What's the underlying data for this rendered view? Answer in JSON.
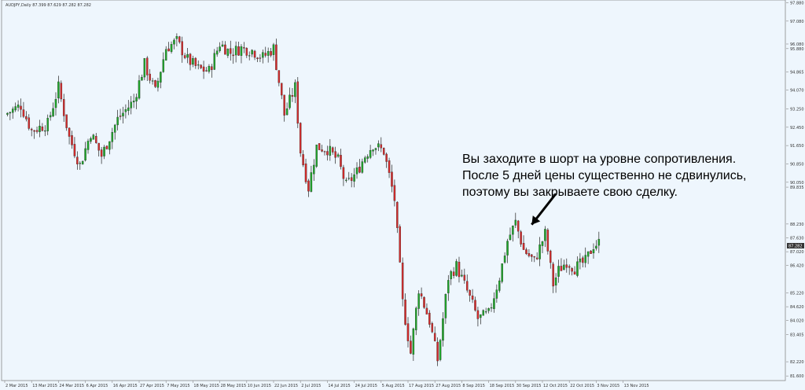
{
  "chart_data": {
    "type": "candlestick",
    "symbol_info": "AUDJPY,Daily  87.399 87.629 87.282 87.282",
    "annotation": [
      "Вы заходите в шорт на уровне сопротивления.",
      "После 5 дней цены существенно не сдвинулись,",
      "поэтому вы закрываете свою сделку."
    ],
    "current_price": "87.282",
    "ylim": [
      82.0,
      98.0
    ],
    "y_ticks": [
      {
        "v": 97.88,
        "label": "97.880"
      },
      {
        "v": 97.08,
        "label": "97.080"
      },
      {
        "v": 96.08,
        "label": "96.080"
      },
      {
        "v": 95.88,
        "label": "95.880"
      },
      {
        "v": 94.865,
        "label": "94.865"
      },
      {
        "v": 94.07,
        "label": "94.070"
      },
      {
        "v": 93.25,
        "label": "93.250"
      },
      {
        "v": 92.45,
        "label": "92.450"
      },
      {
        "v": 91.65,
        "label": "91.650"
      },
      {
        "v": 90.85,
        "label": "90.850"
      },
      {
        "v": 90.05,
        "label": "90.050"
      },
      {
        "v": 89.835,
        "label": "89.835"
      },
      {
        "v": 88.23,
        "label": "88.230"
      },
      {
        "v": 87.63,
        "label": "87.630"
      },
      {
        "v": 87.02,
        "label": "87.020"
      },
      {
        "v": 86.42,
        "label": "86.420"
      },
      {
        "v": 85.22,
        "label": "85.220"
      },
      {
        "v": 84.62,
        "label": "84.620"
      },
      {
        "v": 84.02,
        "label": "84.020"
      },
      {
        "v": 83.405,
        "label": "83.405"
      },
      {
        "v": 82.22,
        "label": "82.220"
      },
      {
        "v": 81.6,
        "label": "81.600"
      }
    ],
    "x_ticks": [
      {
        "i": 0,
        "label": "2 Mar 2015"
      },
      {
        "i": 10,
        "label": "13 Mar 2015"
      },
      {
        "i": 20,
        "label": "24 Mar 2015"
      },
      {
        "i": 30,
        "label": "6 Apr 2015"
      },
      {
        "i": 40,
        "label": "16 Apr 2015"
      },
      {
        "i": 50,
        "label": "27 Apr 2015"
      },
      {
        "i": 60,
        "label": "7 May 2015"
      },
      {
        "i": 70,
        "label": "18 May 2015"
      },
      {
        "i": 80,
        "label": "28 May 2015"
      },
      {
        "i": 90,
        "label": "10 Jun 2015"
      },
      {
        "i": 100,
        "label": "22 Jun 2015"
      },
      {
        "i": 110,
        "label": "2 Jul 2015"
      },
      {
        "i": 120,
        "label": "14 Jul 2015"
      },
      {
        "i": 130,
        "label": "24 Jul 2015"
      },
      {
        "i": 140,
        "label": "5 Aug 2015"
      },
      {
        "i": 150,
        "label": "17 Aug 2015"
      },
      {
        "i": 160,
        "label": "27 Aug 2015"
      },
      {
        "i": 170,
        "label": "8 Sep 2015"
      },
      {
        "i": 180,
        "label": "18 Sep 2015"
      },
      {
        "i": 190,
        "label": "30 Sep 2015"
      },
      {
        "i": 200,
        "label": "12 Oct 2015"
      },
      {
        "i": 210,
        "label": "22 Oct 2015"
      },
      {
        "i": 220,
        "label": "3 Nov 2015"
      },
      {
        "i": 230,
        "label": "13 Nov 2015"
      }
    ],
    "close_path": [
      [
        0,
        93.0
      ],
      [
        6,
        93.4
      ],
      [
        10,
        92.3
      ],
      [
        16,
        92.6
      ],
      [
        20,
        94.2
      ],
      [
        24,
        92.0
      ],
      [
        28,
        90.8
      ],
      [
        32,
        92.2
      ],
      [
        36,
        91.2
      ],
      [
        42,
        92.8
      ],
      [
        48,
        93.6
      ],
      [
        52,
        95.2
      ],
      [
        56,
        94.0
      ],
      [
        60,
        95.9
      ],
      [
        64,
        96.2
      ],
      [
        68,
        95.4
      ],
      [
        72,
        95.0
      ],
      [
        76,
        94.9
      ],
      [
        80,
        96.1
      ],
      [
        84,
        95.7
      ],
      [
        88,
        95.9
      ],
      [
        92,
        95.8
      ],
      [
        96,
        95.5
      ],
      [
        100,
        95.9
      ],
      [
        104,
        93.0
      ],
      [
        108,
        94.2
      ],
      [
        110,
        91.4
      ],
      [
        113,
        89.8
      ],
      [
        116,
        91.6
      ],
      [
        120,
        91.5
      ],
      [
        124,
        91.0
      ],
      [
        127,
        89.9
      ],
      [
        131,
        90.5
      ],
      [
        134,
        91.2
      ],
      [
        137,
        91.7
      ],
      [
        141,
        91.4
      ],
      [
        145,
        89.3
      ],
      [
        148,
        84.8
      ],
      [
        151,
        82.6
      ],
      [
        154,
        85.4
      ],
      [
        158,
        84.0
      ],
      [
        161,
        82.3
      ],
      [
        165,
        85.9
      ],
      [
        168,
        86.4
      ],
      [
        172,
        85.3
      ],
      [
        176,
        84.1
      ],
      [
        180,
        84.3
      ],
      [
        184,
        85.9
      ],
      [
        187,
        87.5
      ],
      [
        190,
        88.3
      ],
      [
        193,
        87.1
      ],
      [
        197,
        86.6
      ],
      [
        201,
        87.8
      ],
      [
        204,
        85.6
      ],
      [
        206,
        86.2
      ],
      [
        209,
        86.6
      ],
      [
        212,
        86.3
      ],
      [
        216,
        86.6
      ],
      [
        219,
        87.3
      ],
      [
        221,
        87.4
      ]
    ],
    "arrow": {
      "from_i": 205,
      "from_v": 89.55,
      "to_i": 196,
      "to_v": 88.2
    },
    "colors": {
      "bull": "#1fa52a",
      "bear": "#d32b2b",
      "background": "#eef6fd",
      "axis": "#888888",
      "text": "#333333"
    }
  }
}
